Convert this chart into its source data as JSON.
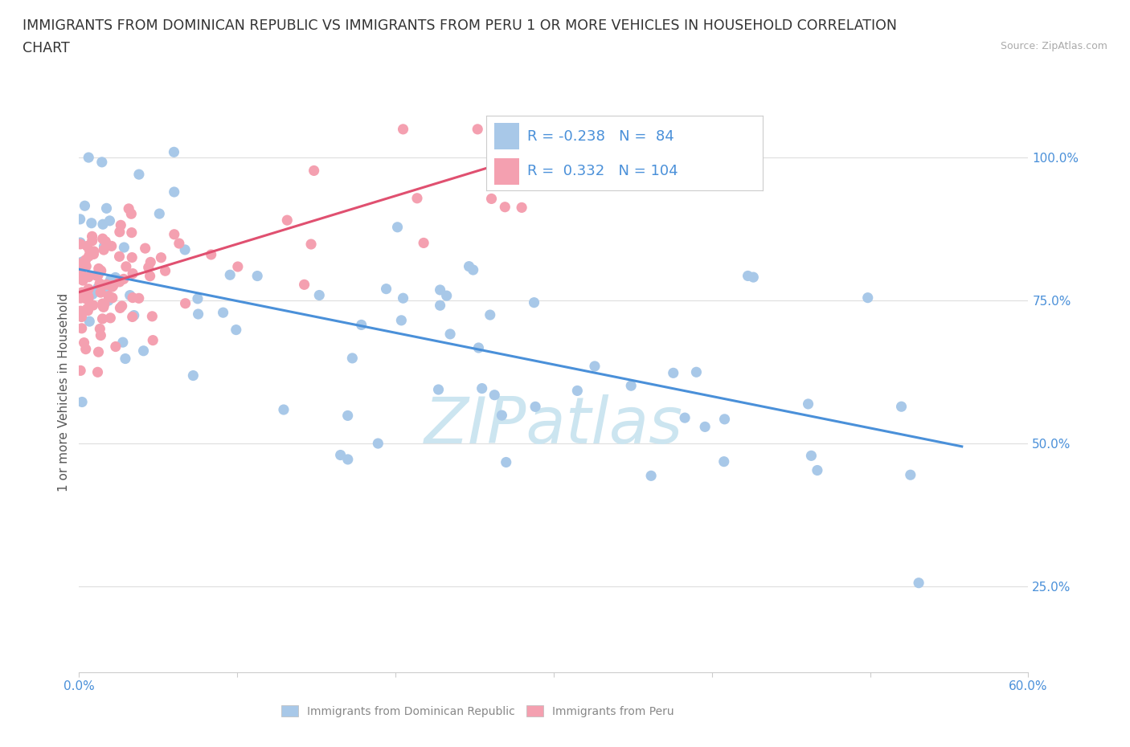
{
  "title_line1": "IMMIGRANTS FROM DOMINICAN REPUBLIC VS IMMIGRANTS FROM PERU 1 OR MORE VEHICLES IN HOUSEHOLD CORRELATION",
  "title_line2": "CHART",
  "source_text": "Source: ZipAtlas.com",
  "ylabel": "1 or more Vehicles in Household",
  "xlim": [
    0.0,
    0.6
  ],
  "ylim": [
    0.1,
    1.08
  ],
  "xticks": [
    0.0,
    0.1,
    0.2,
    0.3,
    0.4,
    0.5,
    0.6
  ],
  "xticklabels": [
    "0.0%",
    "",
    "",
    "",
    "",
    "",
    "60.0%"
  ],
  "ytick_right_labels": [
    "100.0%",
    "75.0%",
    "50.0%",
    "25.0%"
  ],
  "ytick_right_values": [
    1.0,
    0.75,
    0.5,
    0.25
  ],
  "blue_R": -0.238,
  "blue_N": 84,
  "pink_R": 0.332,
  "pink_N": 104,
  "blue_color": "#a8c8e8",
  "pink_color": "#f4a0b0",
  "blue_line_color": "#4a90d9",
  "pink_line_color": "#e05070",
  "legend_text_color": "#4a90d9",
  "watermark_color": "#cce5f0",
  "background_color": "#ffffff",
  "grid_color": "#e0e0e0",
  "blue_trend_x0": 0.0,
  "blue_trend_x1": 0.558,
  "blue_trend_y0": 0.805,
  "blue_trend_y1": 0.495,
  "pink_trend_x0": 0.0,
  "pink_trend_x1": 0.285,
  "pink_trend_y0": 0.765,
  "pink_trend_y1": 1.005
}
